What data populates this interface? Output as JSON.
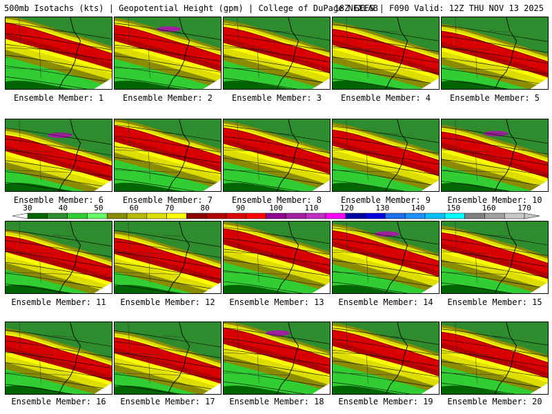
{
  "header": {
    "left": "500mb Isotachs (kts) | Geopotential Height (gpm) | College of DuPage NEXLAB",
    "right": "18Z GEFS | F090 Valid: 12Z THU NOV 13 2025"
  },
  "panels": [
    {
      "label": "Ensemble Member: 1"
    },
    {
      "label": "Ensemble Member: 2"
    },
    {
      "label": "Ensemble Member: 3"
    },
    {
      "label": "Ensemble Member: 4"
    },
    {
      "label": "Ensemble Member: 5"
    },
    {
      "label": "Ensemble Member: 6"
    },
    {
      "label": "Ensemble Member: 7"
    },
    {
      "label": "Ensemble Member: 8"
    },
    {
      "label": "Ensemble Member: 9"
    },
    {
      "label": "Ensemble Member: 10"
    },
    {
      "label": "Ensemble Member: 11"
    },
    {
      "label": "Ensemble Member: 12"
    },
    {
      "label": "Ensemble Member: 13"
    },
    {
      "label": "Ensemble Member: 14"
    },
    {
      "label": "Ensemble Member: 15"
    },
    {
      "label": "Ensemble Member: 16"
    },
    {
      "label": "Ensemble Member: 17"
    },
    {
      "label": "Ensemble Member: 18"
    },
    {
      "label": "Ensemble Member: 19"
    },
    {
      "label": "Ensemble Member: 20"
    }
  ],
  "colorbar": {
    "ticks": [
      "30",
      "40",
      "50",
      "60",
      "70",
      "80",
      "90",
      "100",
      "110",
      "120",
      "130",
      "140",
      "150",
      "160",
      "170"
    ],
    "colors": [
      "#006400",
      "#2e8b2e",
      "#32cd32",
      "#66ff66",
      "#8b8b00",
      "#b8b800",
      "#dddd00",
      "#ffff00",
      "#8b0000",
      "#b00000",
      "#d80000",
      "#ff0000",
      "#8b008b",
      "#a020a0",
      "#c030c0",
      "#ff00ff",
      "#0000a0",
      "#0000dd",
      "#1e6ee8",
      "#1e90ff",
      "#00bfff",
      "#00ffff",
      "#808080",
      "#a0a0a0",
      "#c8c8c8"
    ]
  }
}
